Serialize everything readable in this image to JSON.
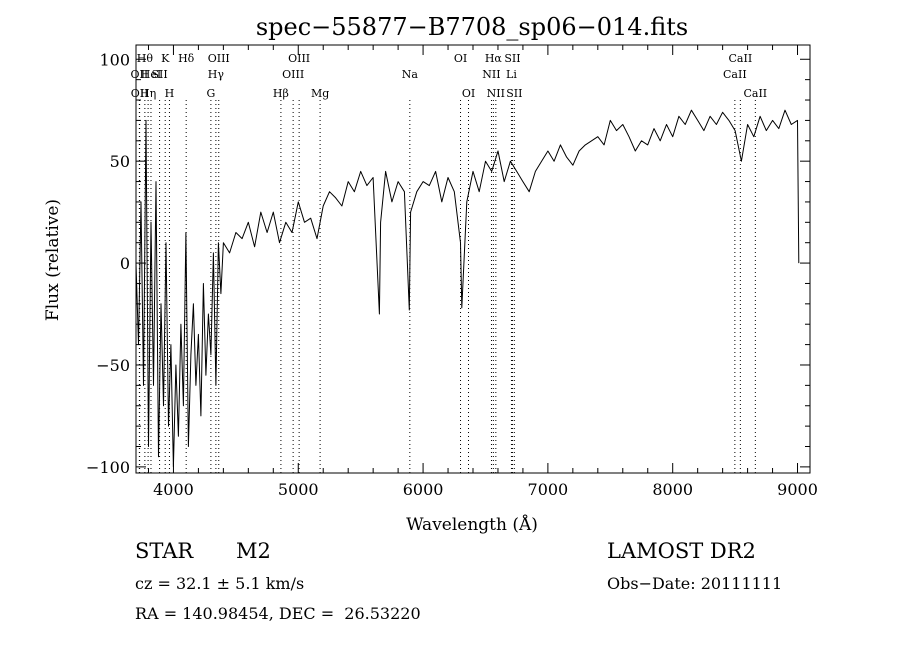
{
  "chart_data": {
    "type": "line",
    "title": "spec−55877−B7708_sp06−014.fits",
    "xlabel": "Wavelength (Å)",
    "ylabel": "Flux (relative)",
    "xlim": [
      3700,
      9100
    ],
    "ylim": [
      -103,
      107
    ],
    "x_ticks": [
      4000,
      5000,
      6000,
      7000,
      8000,
      9000
    ],
    "y_ticks": [
      -100,
      -50,
      0,
      50,
      100
    ],
    "x_tick_labels": [
      "4000",
      "5000",
      "6000",
      "7000",
      "8000",
      "9000"
    ],
    "y_tick_labels": [
      "−100",
      "−50",
      "0",
      "50",
      "100"
    ],
    "grid": false,
    "series": [
      {
        "x": [
          3700,
          3720,
          3740,
          3760,
          3780,
          3800,
          3820,
          3840,
          3860,
          3880,
          3900,
          3920,
          3940,
          3960,
          3980,
          4000,
          4020,
          4040,
          4060,
          4080,
          4100,
          4120,
          4140,
          4160,
          4180,
          4200,
          4220,
          4240,
          4260,
          4280,
          4300,
          4320,
          4340,
          4360,
          4380,
          4400,
          4450,
          4500,
          4550,
          4600,
          4650,
          4700,
          4750,
          4800,
          4850,
          4900,
          4950,
          5000,
          5050,
          5100,
          5150,
          5200,
          5250,
          5300,
          5350,
          5400,
          5450,
          5500,
          5550,
          5600,
          5650,
          5660,
          5700,
          5750,
          5800,
          5850,
          5890,
          5900,
          5950,
          6000,
          6050,
          6100,
          6150,
          6200,
          6250,
          6300,
          6310,
          6350,
          6400,
          6450,
          6500,
          6550,
          6600,
          6650,
          6700,
          6750,
          6800,
          6850,
          6900,
          6950,
          7000,
          7050,
          7100,
          7150,
          7200,
          7250,
          7300,
          7350,
          7400,
          7450,
          7500,
          7550,
          7600,
          7650,
          7700,
          7750,
          7800,
          7850,
          7900,
          7950,
          8000,
          8050,
          8100,
          8150,
          8200,
          8250,
          8300,
          8350,
          8400,
          8450,
          8500,
          8550,
          8600,
          8650,
          8700,
          8750,
          8800,
          8850,
          8900,
          8950,
          9000,
          9010
        ],
        "y": [
          0,
          -40,
          30,
          -60,
          70,
          -90,
          20,
          -60,
          40,
          -95,
          -20,
          -70,
          10,
          -80,
          -40,
          -100,
          -50,
          -85,
          -30,
          -70,
          15,
          -90,
          -45,
          -20,
          -60,
          -35,
          -75,
          -10,
          -55,
          -25,
          -45,
          5,
          -60,
          10,
          -15,
          10,
          5,
          15,
          12,
          20,
          8,
          25,
          15,
          25,
          10,
          20,
          15,
          30,
          20,
          22,
          12,
          28,
          35,
          32,
          28,
          40,
          35,
          45,
          38,
          42,
          -25,
          20,
          45,
          30,
          40,
          35,
          -23,
          25,
          35,
          40,
          38,
          45,
          30,
          42,
          35,
          10,
          -22,
          30,
          45,
          35,
          50,
          45,
          55,
          40,
          50,
          45,
          40,
          35,
          45,
          50,
          55,
          50,
          58,
          52,
          48,
          55,
          58,
          60,
          62,
          58,
          70,
          65,
          68,
          62,
          55,
          60,
          58,
          66,
          60,
          68,
          62,
          72,
          68,
          75,
          70,
          65,
          72,
          68,
          74,
          70,
          65,
          50,
          68,
          62,
          72,
          65,
          70,
          66,
          75,
          68,
          70,
          0
        ]
      }
    ],
    "line_labels": [
      {
        "x": 3727,
        "label": "OII",
        "row": 2
      },
      {
        "x": 3729,
        "label": "OII",
        "row": 3
      },
      {
        "x": 3771,
        "label": "Hθ",
        "row": 1
      },
      {
        "x": 3797,
        "label": "Hη",
        "row": 3
      },
      {
        "x": 3820,
        "label": "HeI",
        "row": 2
      },
      {
        "x": 3889,
        "label": "SII",
        "row": 2
      },
      {
        "x": 3934,
        "label": "K",
        "row": 1
      },
      {
        "x": 3968,
        "label": "H",
        "row": 3
      },
      {
        "x": 4102,
        "label": "Hδ",
        "row": 1
      },
      {
        "x": 4300,
        "label": "G",
        "row": 3
      },
      {
        "x": 4340,
        "label": "Hγ",
        "row": 2
      },
      {
        "x": 4363,
        "label": "OIII",
        "row": 1
      },
      {
        "x": 4861,
        "label": "Hβ",
        "row": 3
      },
      {
        "x": 4959,
        "label": "OIII",
        "row": 2
      },
      {
        "x": 5007,
        "label": "OIII",
        "row": 1
      },
      {
        "x": 5175,
        "label": "Mg",
        "row": 3
      },
      {
        "x": 5894,
        "label": "Na",
        "row": 2
      },
      {
        "x": 6300,
        "label": "OI",
        "row": 1
      },
      {
        "x": 6364,
        "label": "OI",
        "row": 3
      },
      {
        "x": 6548,
        "label": "NII",
        "row": 2
      },
      {
        "x": 6563,
        "label": "Hα",
        "row": 1
      },
      {
        "x": 6583,
        "label": "NII",
        "row": 3
      },
      {
        "x": 6708,
        "label": "Li",
        "row": 2
      },
      {
        "x": 6716,
        "label": "SII",
        "row": 1
      },
      {
        "x": 6731,
        "label": "SII",
        "row": 3
      },
      {
        "x": 8498,
        "label": "CaII",
        "row": 2
      },
      {
        "x": 8542,
        "label": "CaII",
        "row": 1
      },
      {
        "x": 8662,
        "label": "CaII",
        "row": 3
      }
    ]
  },
  "info": {
    "class": "STAR",
    "subclass": "M2",
    "cz": "cz = 32.1 ± 5.1 km/s",
    "coords": "RA = 140.98454, DEC =  26.53220",
    "survey": "LAMOST DR2",
    "obs_date": "Obs−Date: 20111111"
  }
}
